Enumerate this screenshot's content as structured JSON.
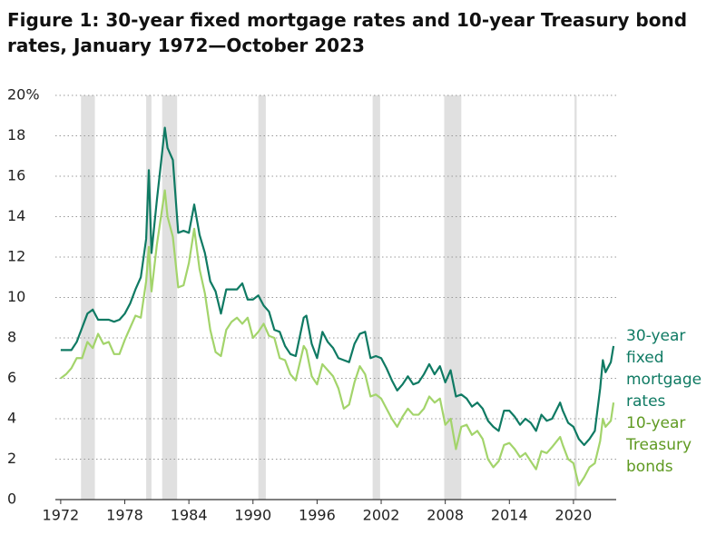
{
  "chart_data": {
    "type": "line",
    "title": "Figure 1: 30-year fixed mortgage rates and 10-year Treasury bond rates, January 1972—October 2023",
    "x": [
      1972,
      1972.5,
      1973,
      1973.5,
      1974,
      1974.5,
      1975,
      1975.5,
      1976,
      1976.5,
      1977,
      1977.5,
      1978,
      1978.5,
      1979,
      1979.5,
      1980,
      1980.25,
      1980.5,
      1981,
      1981.75,
      1982,
      1982.5,
      1983,
      1983.5,
      1984,
      1984.5,
      1985,
      1985.5,
      1986,
      1986.5,
      1987,
      1987.5,
      1988,
      1988.5,
      1989,
      1989.5,
      1990,
      1990.5,
      1991,
      1991.5,
      1992,
      1992.5,
      1993,
      1993.5,
      1994,
      1994.75,
      1995,
      1995.5,
      1996,
      1996.5,
      1997,
      1997.5,
      1998,
      1998.5,
      1999,
      1999.5,
      2000,
      2000.5,
      2001,
      2001.5,
      2002,
      2002.5,
      2003,
      2003.5,
      2004,
      2004.5,
      2005,
      2005.5,
      2006,
      2006.5,
      2007,
      2007.5,
      2008,
      2008.5,
      2009,
      2009.5,
      2010,
      2010.5,
      2011,
      2011.5,
      2012,
      2012.5,
      2013,
      2013.5,
      2014,
      2014.5,
      2015,
      2015.5,
      2016,
      2016.5,
      2017,
      2017.5,
      2018,
      2018.75,
      2019,
      2019.5,
      2020,
      2020.5,
      2021,
      2021.5,
      2022,
      2022.5,
      2022.75,
      2023,
      2023.5,
      2023.75
    ],
    "series": [
      {
        "name": "30-year fixed mortgage rates",
        "color": "#0f7a63",
        "label_color": "#0f7a63",
        "values": [
          7.4,
          7.4,
          7.4,
          7.8,
          8.5,
          9.2,
          9.4,
          8.9,
          8.9,
          8.9,
          8.8,
          8.9,
          9.2,
          9.7,
          10.4,
          11.0,
          12.9,
          16.3,
          12.2,
          14.8,
          18.4,
          17.4,
          16.8,
          13.2,
          13.3,
          13.2,
          14.6,
          13.1,
          12.2,
          10.8,
          10.3,
          9.2,
          10.4,
          10.4,
          10.4,
          10.7,
          9.9,
          9.9,
          10.1,
          9.6,
          9.3,
          8.4,
          8.3,
          7.6,
          7.2,
          7.1,
          9.0,
          9.1,
          7.7,
          7.0,
          8.3,
          7.8,
          7.5,
          7.0,
          6.9,
          6.8,
          7.7,
          8.2,
          8.3,
          7.0,
          7.1,
          7.0,
          6.5,
          5.9,
          5.4,
          5.7,
          6.1,
          5.7,
          5.8,
          6.2,
          6.7,
          6.2,
          6.6,
          5.8,
          6.4,
          5.1,
          5.2,
          5.0,
          4.6,
          4.8,
          4.5,
          3.9,
          3.6,
          3.4,
          4.4,
          4.4,
          4.1,
          3.7,
          4.0,
          3.8,
          3.4,
          4.2,
          3.9,
          4.0,
          4.8,
          4.4,
          3.8,
          3.6,
          3.0,
          2.7,
          3.0,
          3.4,
          5.5,
          6.9,
          6.3,
          6.8,
          7.6
        ]
      },
      {
        "name": "10-year Treasury bonds",
        "color": "#a3d46b",
        "label_color": "#5f9a22",
        "values": [
          6.0,
          6.2,
          6.5,
          7.0,
          7.0,
          7.8,
          7.5,
          8.2,
          7.7,
          7.8,
          7.2,
          7.2,
          7.9,
          8.5,
          9.1,
          9.0,
          10.8,
          12.5,
          10.3,
          12.6,
          15.3,
          14.0,
          13.0,
          10.5,
          10.6,
          11.7,
          13.4,
          11.4,
          10.2,
          8.4,
          7.3,
          7.1,
          8.4,
          8.8,
          9.0,
          8.7,
          9.0,
          8.0,
          8.3,
          8.7,
          8.1,
          8.0,
          7.0,
          6.9,
          6.2,
          5.9,
          7.6,
          7.4,
          6.1,
          5.7,
          6.7,
          6.4,
          6.1,
          5.5,
          4.5,
          4.7,
          5.8,
          6.6,
          6.2,
          5.1,
          5.2,
          5.0,
          4.5,
          4.0,
          3.6,
          4.1,
          4.5,
          4.2,
          4.2,
          4.5,
          5.1,
          4.8,
          5.0,
          3.7,
          4.0,
          2.5,
          3.6,
          3.7,
          3.2,
          3.4,
          3.0,
          2.0,
          1.6,
          1.9,
          2.7,
          2.8,
          2.5,
          2.1,
          2.3,
          1.9,
          1.5,
          2.4,
          2.3,
          2.6,
          3.1,
          2.7,
          2.0,
          1.8,
          0.7,
          1.1,
          1.6,
          1.8,
          2.9,
          4.0,
          3.6,
          3.9,
          4.8
        ]
      }
    ],
    "recessions": [
      [
        1973.9,
        1975.2
      ],
      [
        1980.0,
        1980.5
      ],
      [
        1981.5,
        1982.9
      ],
      [
        1990.5,
        1991.2
      ],
      [
        2001.2,
        2001.9
      ],
      [
        2007.9,
        2009.5
      ],
      [
        2020.1,
        2020.3
      ]
    ],
    "recession_color": "#e0e0e0",
    "xlim": [
      1971.5,
      2024
    ],
    "xticks": [
      1972,
      1978,
      1984,
      1990,
      1996,
      2002,
      2008,
      2014,
      2020
    ],
    "ylim": [
      0,
      20
    ],
    "yticks": [
      0,
      2,
      4,
      6,
      8,
      10,
      12,
      14,
      16,
      18,
      {
        "value": 20,
        "label": "20%"
      }
    ],
    "grid": true
  }
}
